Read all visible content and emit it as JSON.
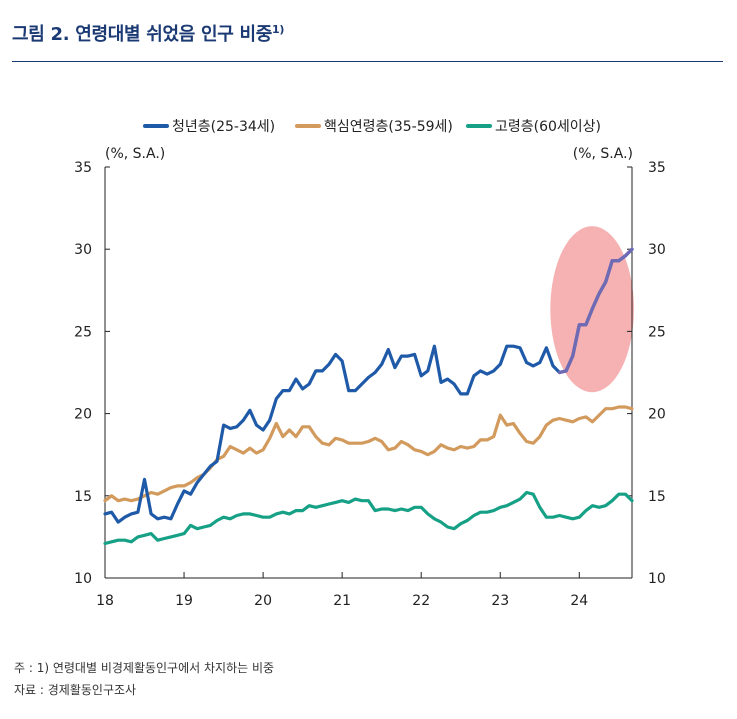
{
  "figure": {
    "title": "그림 2. 연령대별 쉬었음 인구 비중",
    "title_sup": "1)",
    "note": "주 : 1) 연령대별 비경제활동인구에서 차지하는 비중",
    "source": "자료 : 경제활동인구조사"
  },
  "chart_data": {
    "type": "line",
    "left_unit": "(%, S.A.)",
    "right_unit": "(%, S.A.)",
    "ylim": [
      10,
      35
    ],
    "yticks": [
      10,
      15,
      20,
      25,
      30,
      35
    ],
    "xlim": [
      0,
      80
    ],
    "xticks": [
      {
        "pos": 0,
        "label": "18"
      },
      {
        "pos": 12,
        "label": "19"
      },
      {
        "pos": 24,
        "label": "20"
      },
      {
        "pos": 36,
        "label": "21"
      },
      {
        "pos": 48,
        "label": "22"
      },
      {
        "pos": 60,
        "label": "23"
      },
      {
        "pos": 72,
        "label": "24"
      }
    ],
    "highlight": {
      "type": "ellipse",
      "color": "#f4a5a5",
      "x_range": [
        67.6,
        80.3
      ],
      "y_range": [
        21.3,
        31.4
      ]
    },
    "series": [
      {
        "name": "청년층(25-34세)",
        "color": "#1f5aa8",
        "overlay_color": "#6e6ab4",
        "overlay_from_index": 69,
        "values": [
          13.9,
          14,
          13.4,
          13.7,
          13.9,
          14,
          16,
          13.9,
          13.6,
          13.7,
          13.6,
          14.5,
          15.3,
          15.1,
          15.8,
          16.3,
          16.8,
          17.1,
          19.3,
          19.1,
          19.2,
          19.6,
          20.2,
          19.3,
          19,
          19.6,
          20.9,
          21.4,
          21.4,
          22.1,
          21.5,
          21.8,
          22.6,
          22.6,
          23,
          23.6,
          23.2,
          21.4,
          21.4,
          21.8,
          22.2,
          22.5,
          23,
          23.9,
          22.8,
          23.5,
          23.5,
          23.6,
          22.3,
          22.6,
          24.1,
          21.9,
          22.1,
          21.8,
          21.2,
          21.2,
          22.3,
          22.6,
          22.4,
          22.6,
          23,
          24.1,
          24.1,
          24,
          23.1,
          22.9,
          23.1,
          24,
          22.9,
          22.5,
          22.6,
          23.5,
          25.4,
          25.4,
          26.4,
          27.3,
          28,
          29.3,
          29.3,
          29.6,
          30
        ]
      },
      {
        "name": "핵심연령층(35-59세)",
        "color": "#d29a5c",
        "values": [
          14.7,
          15,
          14.7,
          14.8,
          14.7,
          14.8,
          15,
          15.2,
          15.1,
          15.3,
          15.5,
          15.6,
          15.6,
          15.8,
          16.1,
          16.3,
          16.7,
          17.2,
          17.4,
          18,
          17.8,
          17.6,
          17.9,
          17.6,
          17.8,
          18.5,
          19.4,
          18.6,
          19,
          18.6,
          19.2,
          19.2,
          18.6,
          18.2,
          18.1,
          18.5,
          18.4,
          18.2,
          18.2,
          18.2,
          18.3,
          18.5,
          18.3,
          17.8,
          17.9,
          18.3,
          18.1,
          17.8,
          17.7,
          17.5,
          17.7,
          18.1,
          17.9,
          17.8,
          18,
          17.9,
          18,
          18.4,
          18.4,
          18.6,
          19.9,
          19.3,
          19.4,
          18.8,
          18.3,
          18.2,
          18.6,
          19.3,
          19.6,
          19.7,
          19.6,
          19.5,
          19.7,
          19.8,
          19.5,
          19.9,
          20.3,
          20.3,
          20.4,
          20.4,
          20.3
        ]
      },
      {
        "name": "고령층(60세이상)",
        "color": "#16a085",
        "values": [
          12.1,
          12.2,
          12.3,
          12.3,
          12.2,
          12.5,
          12.6,
          12.7,
          12.3,
          12.4,
          12.5,
          12.6,
          12.7,
          13.2,
          13,
          13.1,
          13.2,
          13.5,
          13.7,
          13.6,
          13.8,
          13.9,
          13.9,
          13.8,
          13.7,
          13.7,
          13.9,
          14,
          13.9,
          14.1,
          14.1,
          14.4,
          14.3,
          14.4,
          14.5,
          14.6,
          14.7,
          14.6,
          14.8,
          14.7,
          14.7,
          14.1,
          14.2,
          14.2,
          14.1,
          14.2,
          14.1,
          14.3,
          14.3,
          13.9,
          13.6,
          13.4,
          13.1,
          13,
          13.3,
          13.5,
          13.8,
          14,
          14,
          14.1,
          14.3,
          14.4,
          14.6,
          14.8,
          15.2,
          15.1,
          14.3,
          13.7,
          13.7,
          13.8,
          13.7,
          13.6,
          13.7,
          14.1,
          14.4,
          14.3,
          14.4,
          14.7,
          15.1,
          15.1,
          14.7
        ]
      }
    ]
  }
}
